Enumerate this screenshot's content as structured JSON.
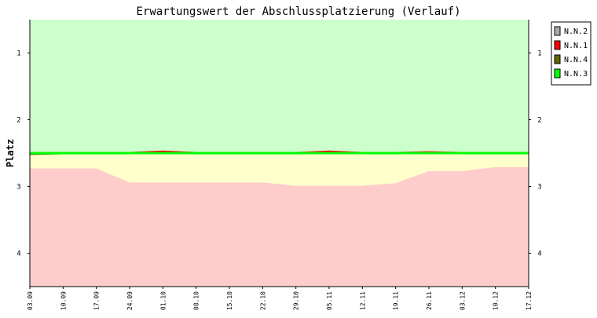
{
  "chart_data": {
    "type": "line",
    "title": "Erwartungswert der Abschlussplatzierung (Verlauf)",
    "ylabel": "Platz",
    "xlabel": "",
    "ylim": [
      4.5,
      0.5
    ],
    "y_ticks": [
      1,
      2,
      3,
      4
    ],
    "grid": false,
    "legend_position": "top-right",
    "categories": [
      "03.09",
      "10.09",
      "17.09",
      "24.09",
      "01.10",
      "08.10",
      "15.10",
      "22.10",
      "29.10",
      "05.11",
      "12.11",
      "19.11",
      "26.11",
      "03.12",
      "10.12",
      "17.12"
    ],
    "zones": {
      "green_until": 2.5,
      "red_boundary": [
        2.73,
        2.73,
        2.73,
        2.94,
        2.94,
        2.94,
        2.94,
        2.94,
        2.99,
        2.99,
        2.99,
        2.95,
        2.77,
        2.77,
        2.71,
        2.71
      ],
      "colors": {
        "green": "#ccffcc",
        "yellow": "#ffffcc",
        "red": "#ffcccc"
      }
    },
    "series": [
      {
        "name": "N.N.2",
        "color": "#aaaaaa",
        "values": [
          2.5,
          2.5,
          2.5,
          2.5,
          2.5,
          2.5,
          2.5,
          2.5,
          2.5,
          2.5,
          2.5,
          2.5,
          2.5,
          2.5,
          2.5,
          2.5
        ]
      },
      {
        "name": "N.N.1",
        "color": "#ff0000",
        "values": [
          2.5,
          2.5,
          2.5,
          2.5,
          2.48,
          2.5,
          2.5,
          2.5,
          2.5,
          2.48,
          2.5,
          2.5,
          2.49,
          2.5,
          2.5,
          2.5
        ]
      },
      {
        "name": "N.N.4",
        "color": "#666600",
        "values": [
          2.51,
          2.5,
          2.5,
          2.5,
          2.5,
          2.5,
          2.5,
          2.5,
          2.5,
          2.5,
          2.5,
          2.5,
          2.5,
          2.5,
          2.5,
          2.5
        ]
      },
      {
        "name": "N.N.3",
        "color": "#00ff00",
        "values": [
          2.5,
          2.5,
          2.5,
          2.5,
          2.5,
          2.5,
          2.5,
          2.5,
          2.5,
          2.5,
          2.5,
          2.5,
          2.5,
          2.5,
          2.5,
          2.5
        ]
      }
    ]
  }
}
